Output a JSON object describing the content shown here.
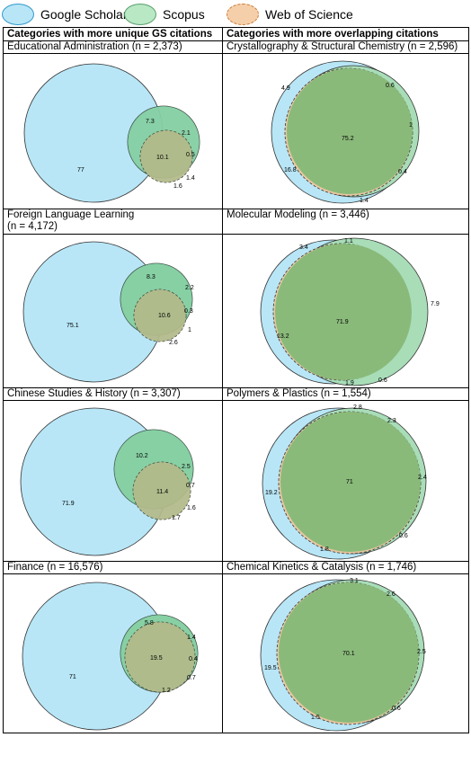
{
  "legend": [
    {
      "label": "Google Scholar",
      "fill": "#b8e6f6",
      "stroke": "#3399cc",
      "dashed": false
    },
    {
      "label": "Scopus",
      "fill": "#b8e8c4",
      "stroke": "#5aa06e",
      "dashed": false
    },
    {
      "label": "Web of Science",
      "fill": "#f4cfa9",
      "stroke": "#c97a3a",
      "dashed": true
    }
  ],
  "columns": {
    "left": "Categories with more unique GS citations",
    "right": "Categories with more overlapping citations"
  },
  "panels": [
    {
      "title": "Educational Administration (n = 2,373)",
      "labels": [
        "77",
        "7.3",
        "2.1",
        "10.1",
        "0.5",
        "1.4",
        "1.6"
      ]
    },
    {
      "title": "Crystallography & Structural Chemistry (n = 2,596)",
      "labels": [
        "4.9",
        "0.6",
        "75.2",
        "1",
        "0.4",
        "16.8",
        "1.4"
      ]
    },
    {
      "title": "Foreign Language Learning\n(n = 4,172)",
      "labels": [
        "8.3",
        "2.2",
        "75.1",
        "10.6",
        "0.3",
        "1",
        "2.6"
      ]
    },
    {
      "title": "Molecular Modeling (n = 3,446)",
      "labels": [
        "1.1",
        "3.4",
        "71.9",
        "7.9",
        "13.2",
        "0.6",
        "1.9"
      ]
    },
    {
      "title": "Chinese Studies & History (n = 3,307)",
      "labels": [
        "10.2",
        "2.5",
        "71.9",
        "11.4",
        "0.7",
        "1.6",
        "1.7"
      ]
    },
    {
      "title": "Polymers & Plastics (n = 1,554)",
      "labels": [
        "2.8",
        "2.3",
        "71",
        "19.2",
        "2.4",
        "0.6",
        "1.8"
      ]
    },
    {
      "title": "Finance (n = 16,576)",
      "labels": [
        "5.8",
        "1.4",
        "71",
        "19.5",
        "0.4",
        "0.7",
        "1.2"
      ]
    },
    {
      "title": "Chemical Kinetics & Catalysis (n = 1,746)",
      "labels": [
        "3.1",
        "2.6",
        "70.1",
        "19.5",
        "2.5",
        "0.6",
        "1.5"
      ]
    }
  ]
}
